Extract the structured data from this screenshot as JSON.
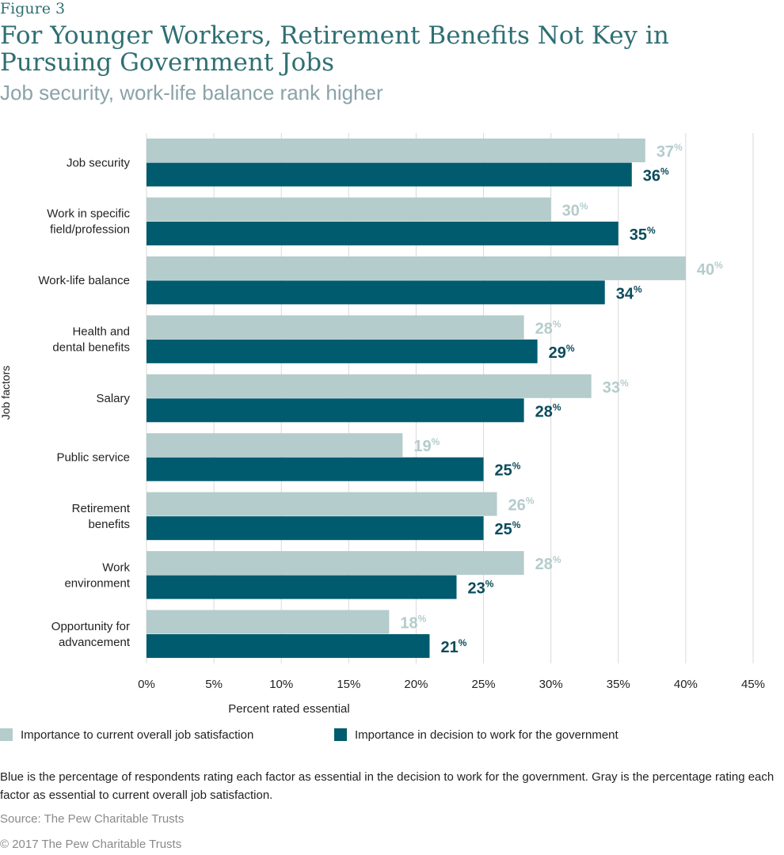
{
  "figure_label": "Figure 3",
  "title": "For Younger Workers, Retirement Benefits Not Key in Pursuing Government Jobs",
  "subtitle": "Job security, work-life balance rank higher",
  "colors": {
    "gray_series": "#b4cccb",
    "blue_series": "#005b6e",
    "gray_label": "#b4cccb",
    "blue_label": "#0b4b5c"
  },
  "chart_data": {
    "type": "bar",
    "orientation": "horizontal",
    "categories": [
      [
        "Job security"
      ],
      [
        "Work in specific",
        "field/profession"
      ],
      [
        "Work-life balance"
      ],
      [
        "Health and",
        "dental benefits"
      ],
      [
        "Salary"
      ],
      [
        "Public service"
      ],
      [
        "Retirement",
        "benefits"
      ],
      [
        "Work",
        "environment"
      ],
      [
        "Opportunity for",
        "advancement"
      ]
    ],
    "series": [
      {
        "name": "Importance to current overall job satisfaction",
        "values": [
          37,
          30,
          40,
          28,
          33,
          19,
          26,
          28,
          18
        ]
      },
      {
        "name": "Importance in decision to work for the government",
        "values": [
          36,
          35,
          34,
          29,
          28,
          25,
          25,
          23,
          21
        ]
      }
    ],
    "xlabel": "Percent rated essential",
    "ylabel": "Job factors",
    "xlim": [
      0,
      45
    ],
    "xticks": [
      0,
      5,
      10,
      15,
      20,
      25,
      30,
      35,
      40,
      45
    ],
    "tick_suffix": "%",
    "value_suffix": "%",
    "grid": true,
    "legend_position": "bottom"
  },
  "note": "Blue is the percentage of respondents rating each factor as essential in the decision to work for the government. Gray is the percentage rating each factor as essential to current overall job satisfaction.",
  "source": "Source: The Pew Charitable Trusts",
  "copyright": "© 2017 The Pew Charitable Trusts"
}
